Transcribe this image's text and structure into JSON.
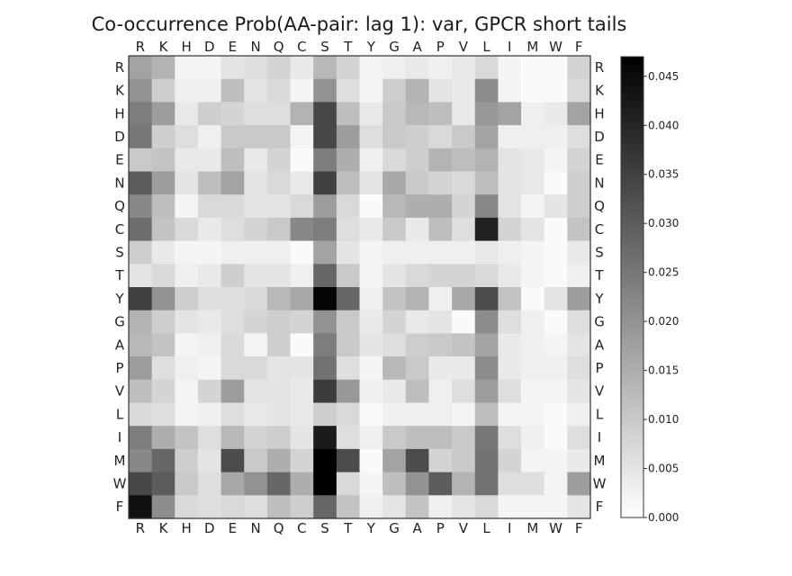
{
  "chart_data": {
    "type": "heatmap",
    "title": "Co-occurrence Prob(AA-pair: lag 1): var, GPCR short tails",
    "xlabel": "",
    "ylabel": "",
    "x_labels": [
      "R",
      "K",
      "H",
      "D",
      "E",
      "N",
      "Q",
      "C",
      "S",
      "T",
      "Y",
      "G",
      "A",
      "P",
      "V",
      "L",
      "I",
      "M",
      "W",
      "F"
    ],
    "y_labels": [
      "R",
      "K",
      "H",
      "D",
      "E",
      "N",
      "Q",
      "C",
      "S",
      "T",
      "Y",
      "G",
      "A",
      "P",
      "V",
      "L",
      "I",
      "M",
      "W",
      "F"
    ],
    "colorbar": {
      "min": 0.0,
      "max": 0.047,
      "ticks": [
        "0.000",
        "0.005",
        "0.010",
        "0.015",
        "0.020",
        "0.025",
        "0.030",
        "0.035",
        "0.040",
        "0.045"
      ],
      "colormap": "gray_r"
    },
    "values": [
      [
        0.017,
        0.014,
        0.002,
        0.002,
        0.005,
        0.006,
        0.008,
        0.004,
        0.013,
        0.008,
        0.002,
        0.003,
        0.004,
        0.003,
        0.004,
        0.007,
        0.002,
        0.001,
        0.001,
        0.008
      ],
      [
        0.02,
        0.009,
        0.003,
        0.003,
        0.012,
        0.005,
        0.007,
        0.002,
        0.02,
        0.006,
        0.002,
        0.009,
        0.014,
        0.005,
        0.004,
        0.021,
        0.002,
        0.001,
        0.001,
        0.007
      ],
      [
        0.024,
        0.018,
        0.004,
        0.009,
        0.008,
        0.006,
        0.006,
        0.014,
        0.034,
        0.012,
        0.004,
        0.01,
        0.013,
        0.012,
        0.004,
        0.019,
        0.017,
        0.003,
        0.004,
        0.017
      ],
      [
        0.025,
        0.009,
        0.006,
        0.003,
        0.01,
        0.01,
        0.01,
        0.002,
        0.034,
        0.018,
        0.006,
        0.01,
        0.009,
        0.007,
        0.01,
        0.017,
        0.003,
        0.003,
        0.003,
        0.006
      ],
      [
        0.01,
        0.011,
        0.004,
        0.004,
        0.012,
        0.004,
        0.008,
        0.001,
        0.024,
        0.015,
        0.003,
        0.007,
        0.009,
        0.014,
        0.012,
        0.014,
        0.005,
        0.004,
        0.002,
        0.008
      ],
      [
        0.03,
        0.018,
        0.005,
        0.012,
        0.017,
        0.005,
        0.007,
        0.004,
        0.035,
        0.012,
        0.005,
        0.016,
        0.01,
        0.008,
        0.007,
        0.012,
        0.005,
        0.004,
        0.001,
        0.009
      ],
      [
        0.022,
        0.012,
        0.002,
        0.007,
        0.007,
        0.005,
        0.005,
        0.007,
        0.018,
        0.007,
        0.001,
        0.013,
        0.015,
        0.015,
        0.008,
        0.022,
        0.005,
        0.002,
        0.005,
        0.009
      ],
      [
        0.027,
        0.011,
        0.007,
        0.004,
        0.006,
        0.008,
        0.01,
        0.022,
        0.024,
        0.006,
        0.004,
        0.01,
        0.004,
        0.012,
        0.006,
        0.041,
        0.008,
        0.005,
        0.001,
        0.011
      ],
      [
        0.009,
        0.004,
        0.002,
        0.002,
        0.003,
        0.003,
        0.003,
        0.001,
        0.017,
        0.005,
        0.002,
        0.003,
        0.003,
        0.003,
        0.003,
        0.004,
        0.003,
        0.002,
        0.001,
        0.004
      ],
      [
        0.005,
        0.007,
        0.003,
        0.004,
        0.009,
        0.005,
        0.005,
        0.003,
        0.028,
        0.01,
        0.002,
        0.005,
        0.007,
        0.008,
        0.008,
        0.007,
        0.004,
        0.002,
        0.001,
        0.003
      ],
      [
        0.035,
        0.02,
        0.009,
        0.006,
        0.006,
        0.007,
        0.013,
        0.016,
        0.046,
        0.028,
        0.003,
        0.011,
        0.014,
        0.003,
        0.016,
        0.033,
        0.011,
        0.001,
        0.005,
        0.018
      ],
      [
        0.014,
        0.009,
        0.005,
        0.004,
        0.006,
        0.008,
        0.009,
        0.008,
        0.02,
        0.01,
        0.004,
        0.008,
        0.004,
        0.005,
        0.001,
        0.021,
        0.006,
        0.003,
        0.001,
        0.006
      ],
      [
        0.013,
        0.011,
        0.002,
        0.003,
        0.007,
        0.002,
        0.009,
        0.001,
        0.024,
        0.01,
        0.005,
        0.006,
        0.009,
        0.01,
        0.011,
        0.017,
        0.004,
        0.003,
        0.002,
        0.005
      ],
      [
        0.018,
        0.006,
        0.003,
        0.002,
        0.007,
        0.007,
        0.005,
        0.005,
        0.026,
        0.006,
        0.002,
        0.013,
        0.01,
        0.004,
        0.004,
        0.021,
        0.004,
        0.003,
        0.003,
        0.006
      ],
      [
        0.012,
        0.008,
        0.002,
        0.008,
        0.018,
        0.005,
        0.005,
        0.004,
        0.036,
        0.019,
        0.003,
        0.004,
        0.012,
        0.003,
        0.006,
        0.018,
        0.006,
        0.002,
        0.002,
        0.005
      ],
      [
        0.007,
        0.006,
        0.002,
        0.003,
        0.006,
        0.004,
        0.005,
        0.004,
        0.009,
        0.007,
        0.001,
        0.003,
        0.003,
        0.003,
        0.002,
        0.012,
        0.002,
        0.002,
        0.001,
        0.003
      ],
      [
        0.024,
        0.015,
        0.011,
        0.006,
        0.013,
        0.008,
        0.009,
        0.005,
        0.042,
        0.006,
        0.003,
        0.01,
        0.012,
        0.012,
        0.01,
        0.025,
        0.006,
        0.003,
        0.001,
        0.006
      ],
      [
        0.022,
        0.028,
        0.009,
        0.005,
        0.033,
        0.01,
        0.015,
        0.008,
        0.047,
        0.033,
        0.001,
        0.017,
        0.033,
        0.008,
        0.01,
        0.026,
        0.008,
        0.002,
        0.002,
        0.004
      ],
      [
        0.034,
        0.03,
        0.01,
        0.006,
        0.016,
        0.02,
        0.028,
        0.015,
        0.047,
        0.007,
        0.002,
        0.012,
        0.02,
        0.03,
        0.014,
        0.026,
        0.006,
        0.006,
        0.002,
        0.018
      ],
      [
        0.044,
        0.021,
        0.007,
        0.006,
        0.007,
        0.006,
        0.012,
        0.009,
        0.028,
        0.011,
        0.003,
        0.005,
        0.011,
        0.003,
        0.005,
        0.007,
        0.002,
        0.002,
        0.002,
        0.005
      ]
    ]
  }
}
